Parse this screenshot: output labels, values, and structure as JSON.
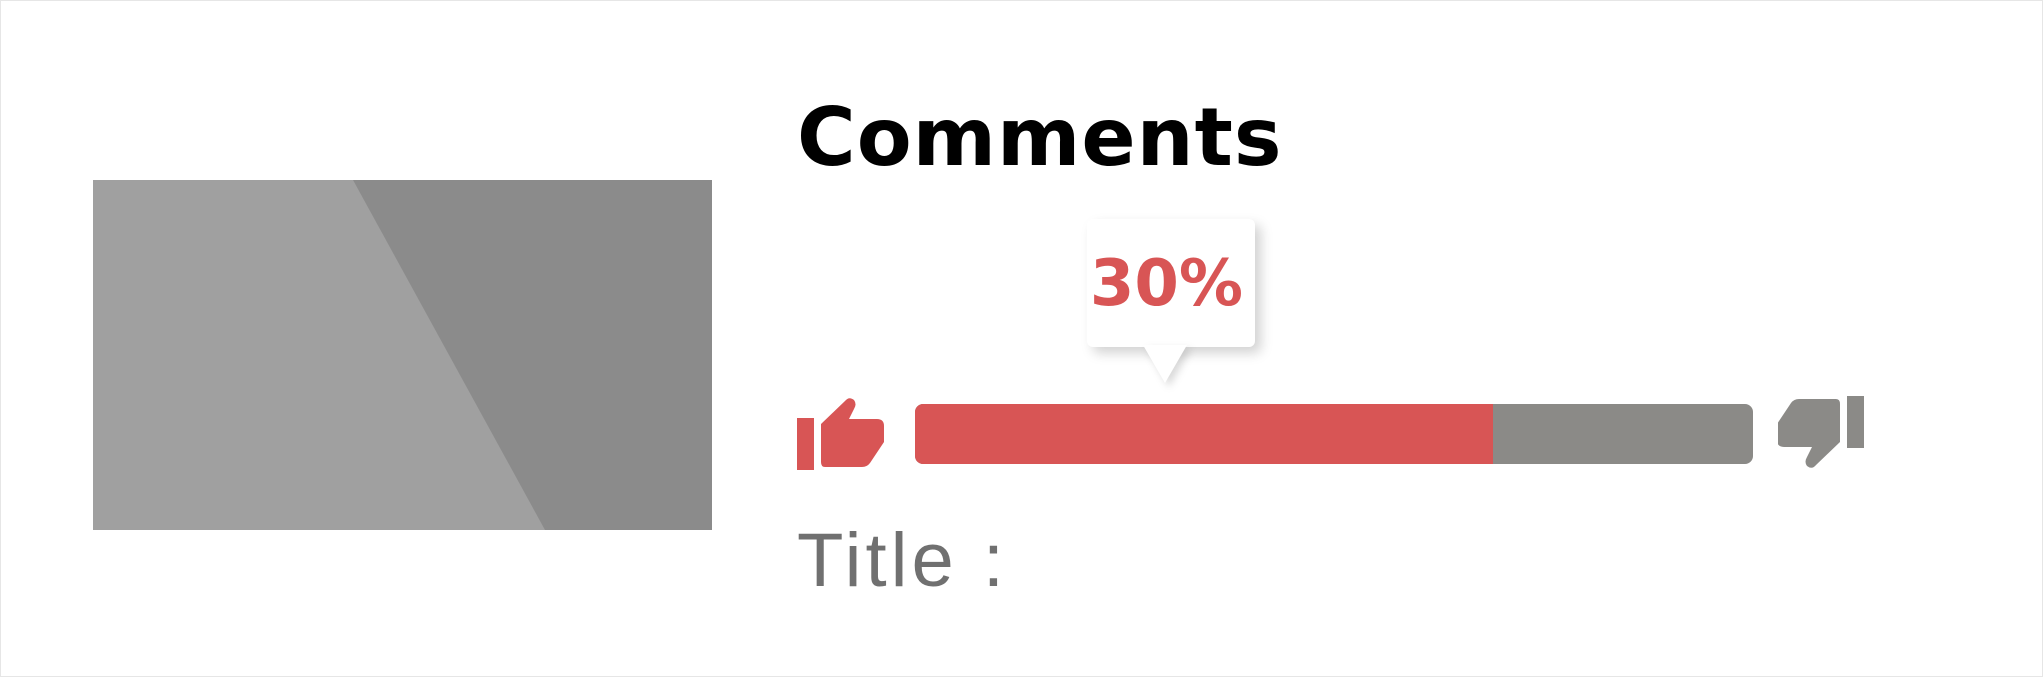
{
  "title": "Comments",
  "rating": {
    "percent_text": "30%",
    "like_fraction": 0.69,
    "like_color": "#d85555",
    "dislike_color": "#8b8a87"
  },
  "icons": {
    "like": "thumbs-up-icon",
    "dislike": "thumbs-down-icon"
  },
  "label": "Title :",
  "thumbnail": {
    "color_light": "#a0a0a0",
    "color_dark": "#8b8b8b"
  }
}
